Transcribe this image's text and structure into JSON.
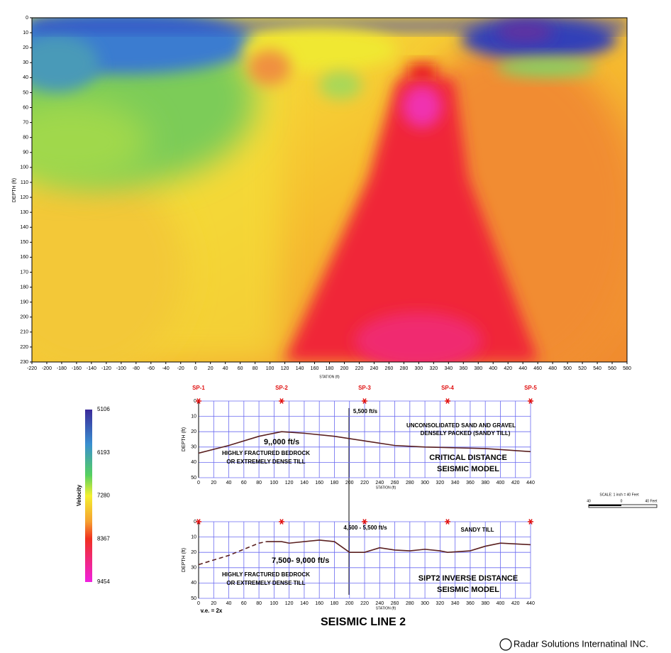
{
  "tomogram": {
    "xlabel": "STATION (ft)",
    "ylabel": "DEPTH (ft)",
    "xlim": [
      -220,
      580
    ],
    "xticks": [
      -220,
      -200,
      -180,
      -160,
      -140,
      -120,
      -100,
      -80,
      -60,
      -40,
      -20,
      0,
      20,
      40,
      60,
      80,
      100,
      120,
      140,
      160,
      180,
      200,
      220,
      240,
      260,
      280,
      300,
      320,
      340,
      360,
      380,
      400,
      420,
      440,
      460,
      480,
      500,
      520,
      540,
      560,
      580
    ],
    "ylim": [
      0,
      230
    ],
    "yticks": [
      0,
      10,
      20,
      30,
      40,
      50,
      60,
      70,
      80,
      90,
      100,
      110,
      120,
      130,
      140,
      150,
      160,
      170,
      180,
      190,
      200,
      210,
      220,
      230
    ]
  },
  "colorbar": {
    "label": "Velocity",
    "ticks": [
      5106,
      6193,
      7280,
      8367,
      9454
    ]
  },
  "shot_points": {
    "labels": [
      "SP-1",
      "SP-2",
      "SP-3",
      "SP-4",
      "SP-5"
    ],
    "stations": [
      0,
      110,
      220,
      330,
      440
    ]
  },
  "models": [
    {
      "xlabel": "STATION (ft)",
      "ylabel": "DEPTH (ft)",
      "xlim": [
        0,
        440
      ],
      "xticks": [
        0,
        20,
        40,
        60,
        80,
        100,
        120,
        140,
        160,
        180,
        200,
        220,
        240,
        260,
        280,
        300,
        320,
        340,
        360,
        380,
        400,
        420,
        440
      ],
      "ylim": [
        0,
        50
      ],
      "yticks": [
        0,
        10,
        20,
        30,
        40,
        50
      ],
      "annotations": [
        "5,500 ft/s",
        "UNCONSOLIDATED SAND AND GRAVEL",
        "DENSELY PACKED (SANDY TILL)",
        "9,,000 ft/s",
        "HIGHLY FRACTURED BEDROCK",
        "OR EXTREMELY DENSE TILL",
        "CRITICAL  DISTANCE",
        "SEISMIC MODEL"
      ],
      "boundaries": [
        {
          "style": "solid",
          "x": [
            0,
            40,
            80,
            110,
            140,
            180,
            220,
            260,
            300,
            340,
            380,
            440
          ],
          "y": [
            34,
            29,
            23,
            20,
            21,
            23,
            26,
            29,
            30,
            30.5,
            31,
            33
          ]
        }
      ]
    },
    {
      "xlabel": "STATION (ft)",
      "ylabel": "DEPTH (ft)",
      "xlim": [
        0,
        440
      ],
      "xticks": [
        0,
        20,
        40,
        60,
        80,
        100,
        120,
        140,
        160,
        180,
        200,
        220,
        240,
        260,
        280,
        300,
        320,
        340,
        360,
        380,
        400,
        420,
        440
      ],
      "ylim": [
        0,
        50
      ],
      "yticks": [
        0,
        10,
        20,
        30,
        40,
        50
      ],
      "annotations": [
        "4,500 - 5,500 ft/s",
        "SANDY TILL",
        "7,500- 9,000 ft/s",
        "HIGHLY FRACTURED BEDROCK",
        "OR EXTREMELY DENSE TILL",
        "SIPT2 INVERSE DISTANCE",
        "SEISMIC MODEL"
      ],
      "boundaries": [
        {
          "style": "dashed",
          "x": [
            0,
            40,
            80,
            90
          ],
          "y": [
            28,
            22,
            14,
            13
          ]
        },
        {
          "style": "solid",
          "x": [
            90,
            110,
            120,
            160,
            180,
            200,
            210,
            220,
            240,
            260,
            280,
            300,
            320,
            330,
            360,
            380,
            400,
            420,
            440
          ],
          "y": [
            13,
            13,
            14,
            12,
            13,
            20,
            20,
            20,
            17,
            18.5,
            19,
            18,
            19,
            20,
            19,
            16,
            14,
            14.5,
            15
          ]
        }
      ]
    }
  ],
  "scale_bar": {
    "title": "SCALE: 1 inch = 40 Feet",
    "labels": [
      "40",
      "0",
      "40 Feet"
    ]
  },
  "footer": {
    "ve": "v.e. = 2x",
    "title": "SEISMIC LINE 2",
    "credit": "Radar Solutions Internatinal INC."
  }
}
